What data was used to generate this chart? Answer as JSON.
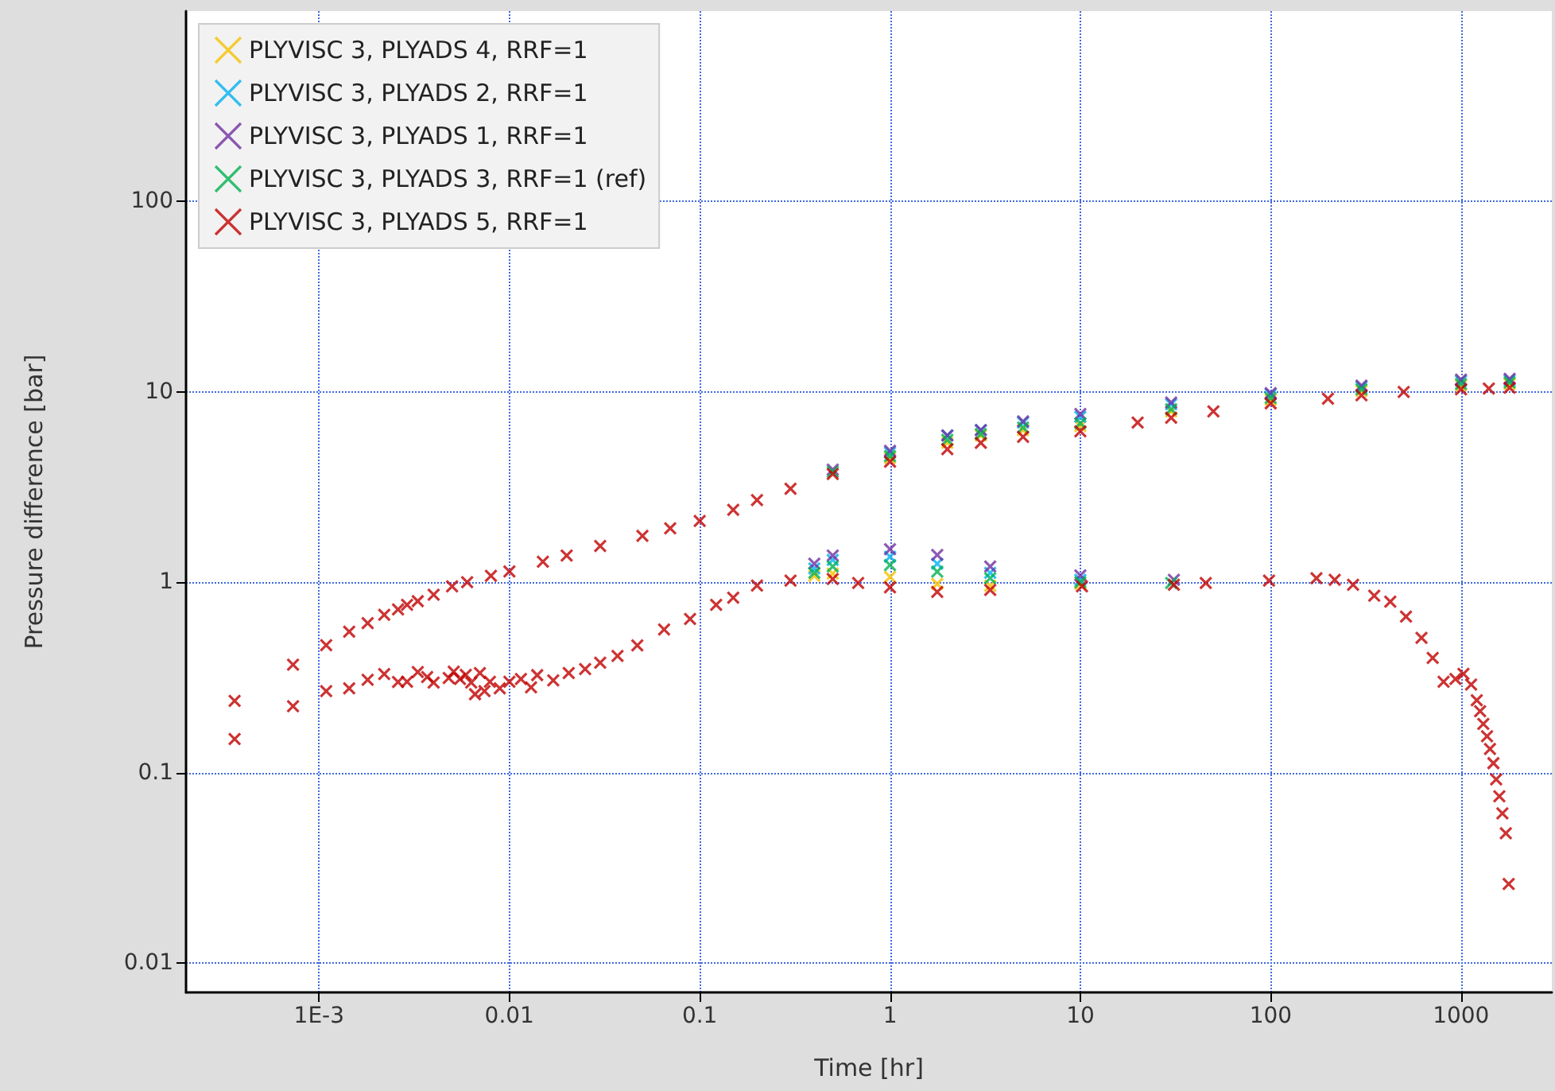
{
  "chart_data": {
    "type": "scatter",
    "xlabel": "Time [hr]",
    "ylabel": "Pressure difference [bar]",
    "xlim": [
      0.0002,
      3000
    ],
    "ylim": [
      0.007,
      1000
    ],
    "xticks": [
      {
        "value": 0.001,
        "label": "1E-3"
      },
      0.01,
      0.1,
      1,
      10,
      100,
      1000
    ],
    "yticks": [
      0.01,
      0.1,
      1,
      10,
      100
    ],
    "log": "xy",
    "grid": true,
    "legend": "top left",
    "marker": "cross",
    "series": [
      {
        "name": "PLYVISC 3, PLYADS 4, RRF=1",
        "color": "#f5c000",
        "x": [
          1,
          2,
          3,
          5,
          10,
          30,
          100,
          300,
          1000,
          1800,
          0.4,
          0.5,
          1,
          1.77,
          3.36,
          10
        ],
        "values": [
          4.5,
          5.4,
          5.9,
          6.3,
          6.6,
          7.9,
          9.1,
          10.1,
          10.8,
          11.0,
          1.08,
          1.11,
          1.065,
          0.98,
          0.957,
          0.98
        ]
      },
      {
        "name": "PLYVISC 3, PLYADS 2, RRF=1",
        "color": "#00b0f0",
        "x": [
          1,
          2,
          3,
          5,
          10,
          30,
          100,
          300,
          1000,
          1800,
          0.4,
          0.5,
          1,
          1.77,
          3.36,
          10
        ],
        "values": [
          4.8,
          5.9,
          6.3,
          6.9,
          7.4,
          8.6,
          9.7,
          10.6,
          11.4,
          11.5,
          1.18,
          1.31,
          1.36,
          1.25,
          1.12,
          1.03
        ]
      },
      {
        "name": "PLYVISC 3, PLYADS 1, RRF=1",
        "color": "#7030a0",
        "x": [
          0.5,
          1,
          2,
          3,
          5,
          10,
          30,
          100,
          300,
          1000,
          1800,
          0.4,
          0.5,
          1,
          1.77,
          3.36,
          10,
          31
        ],
        "values": [
          3.9,
          4.9,
          5.9,
          6.3,
          7.0,
          7.65,
          8.8,
          9.85,
          10.8,
          11.6,
          11.7,
          1.25,
          1.38,
          1.49,
          1.39,
          1.21,
          1.085,
          1.03
        ]
      },
      {
        "name": "PLYVISC 3, PLYADS 3, RRF=1 (ref)",
        "color": "#00b050",
        "x": [
          0.5,
          1,
          2,
          3,
          5,
          10,
          30,
          100,
          300,
          1000,
          1800,
          0.4,
          0.5,
          1,
          1.77,
          3.36,
          10,
          30
        ],
        "values": [
          3.8,
          4.6,
          5.6,
          6.0,
          6.5,
          6.85,
          8.1,
          9.3,
          10.3,
          11.0,
          11.2,
          1.12,
          1.21,
          1.23,
          1.135,
          1.05,
          1.0,
          0.99
        ]
      },
      {
        "name": "PLYVISC 3, PLYADS 5, RRF=1",
        "color": "#c00000",
        "x": [
          0.00036,
          0.00036,
          0.00073,
          0.00073,
          0.00109,
          0.00109,
          0.00144,
          0.00144,
          0.0018,
          0.0018,
          0.0022,
          0.0022,
          0.0026,
          0.0026,
          0.0029,
          0.0029,
          0.0033,
          0.0033,
          0.004,
          0.005,
          0.006,
          0.008,
          0.01,
          0.015,
          0.02,
          0.03,
          0.05,
          0.07,
          0.1,
          0.15,
          0.2,
          0.3,
          0.5,
          1,
          2,
          3,
          5,
          10,
          20,
          30,
          50,
          100,
          200,
          300,
          500,
          1000,
          1400,
          1800,
          0.0037,
          0.004,
          0.0048,
          0.0051,
          0.0055,
          0.0059,
          0.0063,
          0.0066,
          0.007,
          0.0074,
          0.0079,
          0.0089,
          0.01,
          0.0115,
          0.013,
          0.014,
          0.017,
          0.0205,
          0.025,
          0.03,
          0.037,
          0.047,
          0.065,
          0.089,
          0.122,
          0.15,
          0.2,
          0.3,
          0.5,
          0.68,
          1.0,
          1.77,
          3.36,
          10.2,
          31,
          45.6,
          98,
          174,
          217,
          271,
          350,
          425,
          514,
          620,
          710,
          810,
          935,
          1030,
          1130,
          1210,
          1260,
          1310,
          1370,
          1420,
          1480,
          1530,
          1590,
          1650,
          1720,
          1780
        ],
        "values": [
          0.238,
          0.15,
          0.369,
          0.223,
          0.467,
          0.268,
          0.55,
          0.277,
          0.61,
          0.307,
          0.674,
          0.329,
          0.719,
          0.299,
          0.761,
          0.3,
          0.795,
          0.337,
          0.86,
          0.95,
          1.0,
          1.08,
          1.14,
          1.28,
          1.38,
          1.55,
          1.75,
          1.92,
          2.1,
          2.4,
          2.7,
          3.1,
          3.7,
          4.3,
          5.0,
          5.4,
          5.8,
          6.2,
          6.9,
          7.3,
          7.9,
          8.7,
          9.2,
          9.6,
          10.0,
          10.3,
          10.4,
          10.5,
          0.318,
          0.297,
          0.314,
          0.339,
          0.31,
          0.326,
          0.297,
          0.258,
          0.333,
          0.268,
          0.3,
          0.277,
          0.3,
          0.31,
          0.28,
          0.325,
          0.305,
          0.333,
          0.35,
          0.378,
          0.41,
          0.466,
          0.565,
          0.641,
          0.761,
          0.83,
          0.96,
          1.02,
          1.04,
          0.99,
          0.94,
          0.89,
          0.91,
          0.95,
          0.97,
          0.99,
          1.02,
          1.05,
          1.03,
          0.97,
          0.85,
          0.79,
          0.66,
          0.51,
          0.4,
          0.3,
          0.31,
          0.33,
          0.29,
          0.24,
          0.21,
          0.18,
          0.155,
          0.133,
          0.112,
          0.092,
          0.075,
          0.061,
          0.048,
          0.026
        ]
      }
    ]
  }
}
